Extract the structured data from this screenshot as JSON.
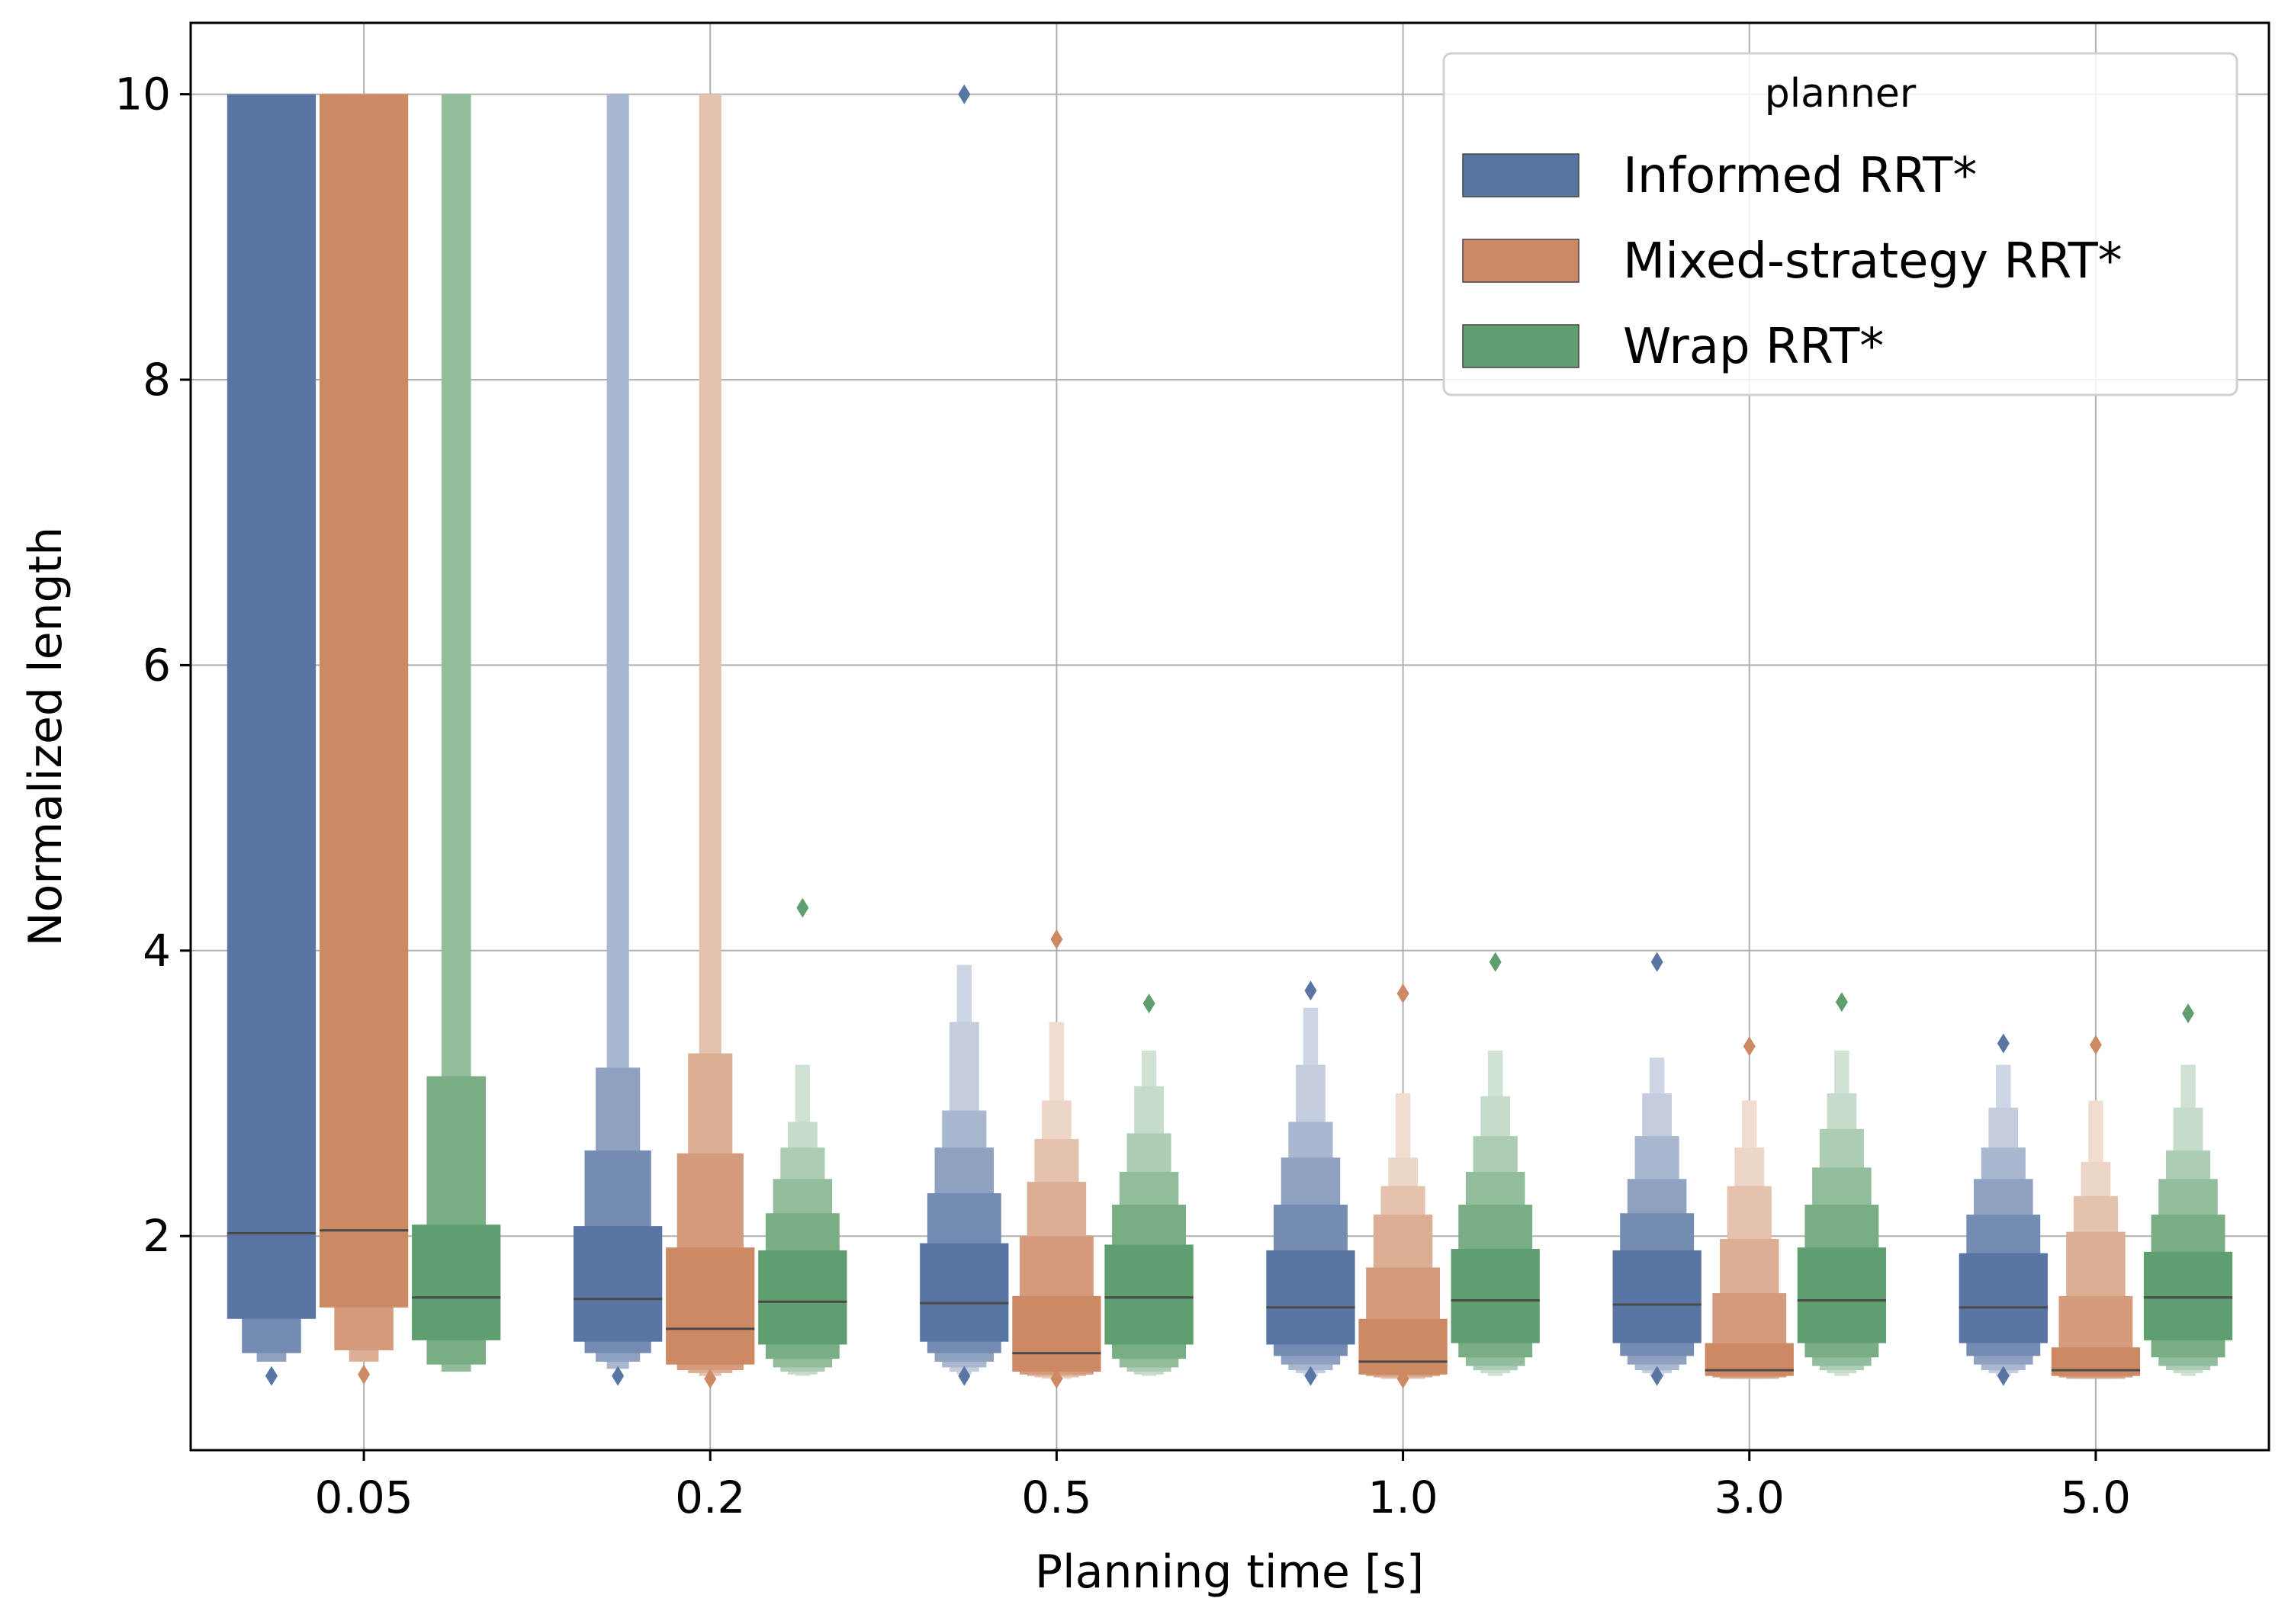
{
  "chart_data": {
    "type": "boxen",
    "xlabel": "Planning time [s]",
    "ylabel": "Normalized length",
    "categories": [
      "0.05",
      "0.2",
      "0.5",
      "1.0",
      "3.0",
      "5.0"
    ],
    "yticks": [
      "2",
      "4",
      "6",
      "8",
      "10"
    ],
    "ylim": [
      0.5,
      10.5
    ],
    "grid": true,
    "legend": {
      "title": "planner",
      "position": "top-right",
      "entries": [
        "Informed RRT*",
        "Mixed-strategy RRT*",
        "Wrap RRT*"
      ]
    },
    "series": [
      {
        "name": "Informed RRT*",
        "color": "#5975a4",
        "boxes": [
          {
            "median": 2.02,
            "levels": [
              [
                1.42,
                10.0
              ],
              [
                1.18,
                10.0
              ],
              [
                1.12,
                10.0
              ]
            ],
            "outliers": [
              1.02
            ]
          },
          {
            "median": 1.56,
            "levels": [
              [
                1.26,
                2.07
              ],
              [
                1.18,
                2.6
              ],
              [
                1.12,
                3.18
              ],
              [
                1.07,
                10.0
              ]
            ],
            "outliers": [
              1.02
            ]
          },
          {
            "median": 1.53,
            "levels": [
              [
                1.26,
                1.95
              ],
              [
                1.18,
                2.3
              ],
              [
                1.12,
                2.62
              ],
              [
                1.08,
                2.88
              ],
              [
                1.05,
                3.5
              ],
              [
                1.03,
                3.9
              ]
            ],
            "outliers": [
              1.02,
              10.0
            ]
          },
          {
            "median": 1.5,
            "levels": [
              [
                1.24,
                1.9
              ],
              [
                1.16,
                2.22
              ],
              [
                1.1,
                2.55
              ],
              [
                1.06,
                2.8
              ],
              [
                1.04,
                3.2
              ],
              [
                1.02,
                3.6
              ]
            ],
            "outliers": [
              1.02,
              3.72
            ]
          },
          {
            "median": 1.52,
            "levels": [
              [
                1.25,
                1.9
              ],
              [
                1.16,
                2.16
              ],
              [
                1.1,
                2.4
              ],
              [
                1.06,
                2.7
              ],
              [
                1.04,
                3.0
              ],
              [
                1.02,
                3.25
              ]
            ],
            "outliers": [
              1.02,
              3.92
            ]
          },
          {
            "median": 1.5,
            "levels": [
              [
                1.25,
                1.88
              ],
              [
                1.16,
                2.15
              ],
              [
                1.1,
                2.4
              ],
              [
                1.06,
                2.62
              ],
              [
                1.04,
                2.9
              ],
              [
                1.02,
                3.2
              ]
            ],
            "outliers": [
              1.02,
              3.35
            ]
          }
        ]
      },
      {
        "name": "Mixed-strategy RRT*",
        "color": "#cc8963",
        "boxes": [
          {
            "median": 2.04,
            "levels": [
              [
                1.5,
                10.0
              ],
              [
                1.2,
                10.0
              ],
              [
                1.12,
                10.0
              ]
            ],
            "outliers": [
              1.03
            ]
          },
          {
            "median": 1.35,
            "levels": [
              [
                1.1,
                1.92
              ],
              [
                1.06,
                2.58
              ],
              [
                1.04,
                3.28
              ],
              [
                1.02,
                10.0
              ]
            ],
            "outliers": [
              1.0
            ]
          },
          {
            "median": 1.18,
            "levels": [
              [
                1.05,
                1.58
              ],
              [
                1.03,
                2.0
              ],
              [
                1.02,
                2.38
              ],
              [
                1.01,
                2.68
              ],
              [
                1.0,
                2.95
              ],
              [
                1.0,
                3.5
              ]
            ],
            "outliers": [
              1.0,
              4.08
            ]
          },
          {
            "median": 1.12,
            "levels": [
              [
                1.03,
                1.42
              ],
              [
                1.02,
                1.78
              ],
              [
                1.01,
                2.15
              ],
              [
                1.0,
                2.35
              ],
              [
                1.0,
                2.55
              ],
              [
                1.0,
                3.0
              ]
            ],
            "outliers": [
              1.0,
              3.7
            ]
          },
          {
            "median": 1.06,
            "levels": [
              [
                1.02,
                1.25
              ],
              [
                1.01,
                1.6
              ],
              [
                1.0,
                1.98
              ],
              [
                1.0,
                2.35
              ],
              [
                1.0,
                2.62
              ],
              [
                1.0,
                2.95
              ]
            ],
            "outliers": [
              3.33
            ]
          },
          {
            "median": 1.06,
            "levels": [
              [
                1.02,
                1.22
              ],
              [
                1.01,
                1.58
              ],
              [
                1.0,
                2.03
              ],
              [
                1.0,
                2.28
              ],
              [
                1.0,
                2.52
              ],
              [
                1.0,
                2.95
              ]
            ],
            "outliers": [
              3.34
            ]
          }
        ]
      },
      {
        "name": "Wrap RRT*",
        "color": "#5f9e6e",
        "boxes": [
          {
            "median": 1.57,
            "levels": [
              [
                1.27,
                2.08
              ],
              [
                1.1,
                3.12
              ],
              [
                1.05,
                10.0
              ]
            ],
            "outliers": []
          },
          {
            "median": 1.54,
            "levels": [
              [
                1.24,
                1.9
              ],
              [
                1.14,
                2.16
              ],
              [
                1.08,
                2.4
              ],
              [
                1.05,
                2.62
              ],
              [
                1.03,
                2.8
              ],
              [
                1.02,
                3.2
              ]
            ],
            "outliers": [
              4.3
            ]
          },
          {
            "median": 1.57,
            "levels": [
              [
                1.24,
                1.94
              ],
              [
                1.14,
                2.22
              ],
              [
                1.08,
                2.45
              ],
              [
                1.05,
                2.72
              ],
              [
                1.03,
                3.05
              ],
              [
                1.02,
                3.3
              ]
            ],
            "outliers": [
              3.63
            ]
          },
          {
            "median": 1.55,
            "levels": [
              [
                1.25,
                1.91
              ],
              [
                1.15,
                2.22
              ],
              [
                1.09,
                2.45
              ],
              [
                1.06,
                2.7
              ],
              [
                1.04,
                2.98
              ],
              [
                1.02,
                3.3
              ]
            ],
            "outliers": [
              3.92
            ]
          },
          {
            "median": 1.55,
            "levels": [
              [
                1.25,
                1.92
              ],
              [
                1.15,
                2.22
              ],
              [
                1.09,
                2.48
              ],
              [
                1.06,
                2.75
              ],
              [
                1.04,
                3.0
              ],
              [
                1.02,
                3.3
              ]
            ],
            "outliers": [
              3.64
            ]
          },
          {
            "median": 1.57,
            "levels": [
              [
                1.27,
                1.89
              ],
              [
                1.15,
                2.15
              ],
              [
                1.09,
                2.4
              ],
              [
                1.06,
                2.6
              ],
              [
                1.04,
                2.9
              ],
              [
                1.02,
                3.2
              ]
            ],
            "outliers": [
              3.56
            ]
          }
        ]
      }
    ]
  }
}
